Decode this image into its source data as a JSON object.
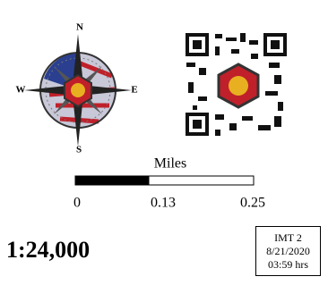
{
  "compass": {
    "north": "N",
    "south": "S",
    "east": "E",
    "west": "W"
  },
  "scale_bar": {
    "unit": "Miles",
    "labels": [
      "0",
      "0.13",
      "0.25"
    ]
  },
  "scale": "1:24,000",
  "info_box": {
    "team": "IMT 2",
    "date": "8/21/2020",
    "time": "03:59 hrs"
  }
}
